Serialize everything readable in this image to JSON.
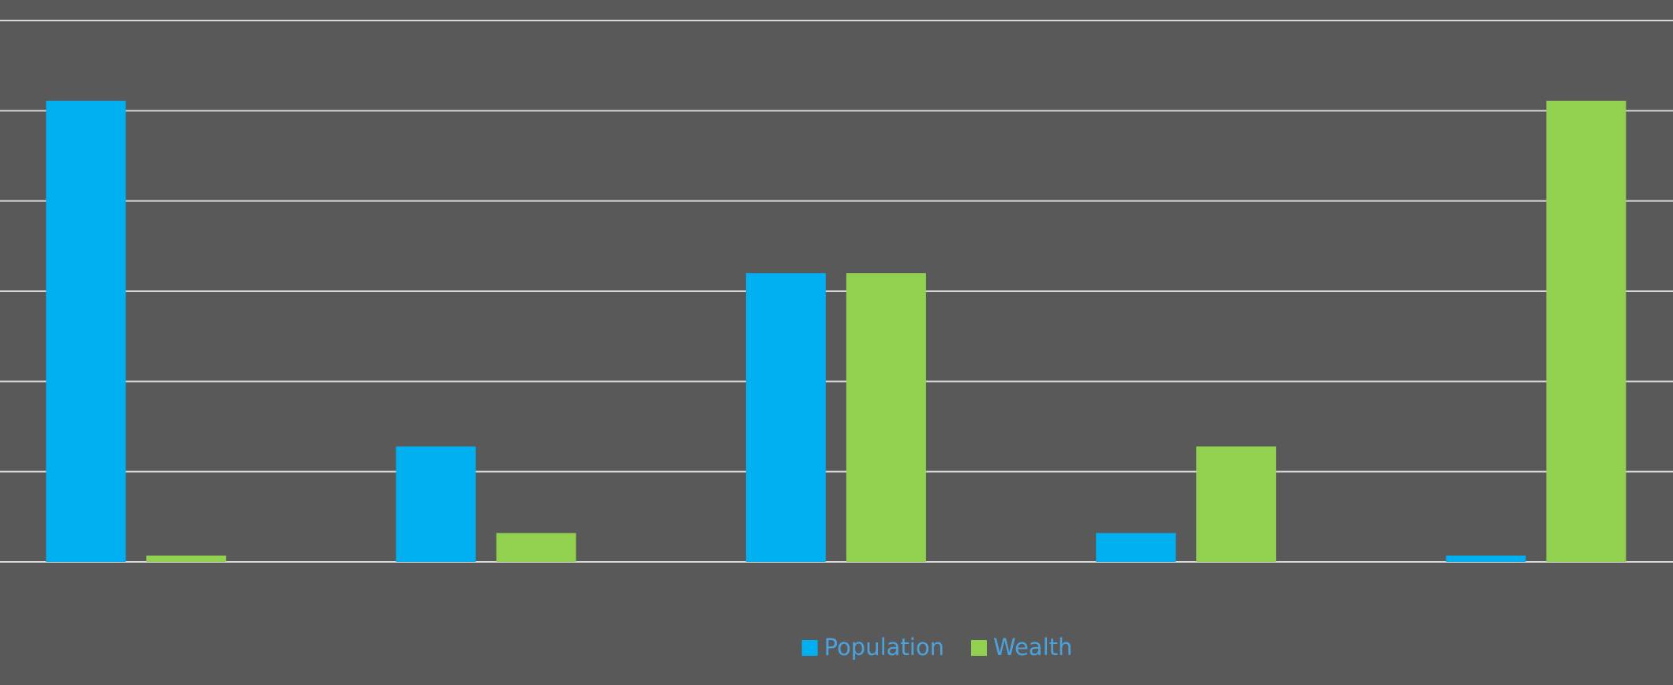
{
  "chart_data": {
    "type": "bar",
    "categories": [
      null,
      null,
      null,
      null,
      null
    ],
    "series": [
      {
        "name": "Population",
        "color": "#00b0f0",
        "values": [
          51.1,
          12.8,
          32,
          3.2,
          0.7
        ]
      },
      {
        "name": "Wealth",
        "color": "#92d050",
        "values": [
          0.7,
          3.2,
          32,
          12.8,
          51.1
        ]
      }
    ],
    "ylim": [
      0,
      60
    ],
    "yticks": [
      0,
      10,
      20,
      30,
      40,
      50,
      60
    ],
    "grid": true,
    "legend": "bottom",
    "legend_text_color": "#4aa3df"
  }
}
